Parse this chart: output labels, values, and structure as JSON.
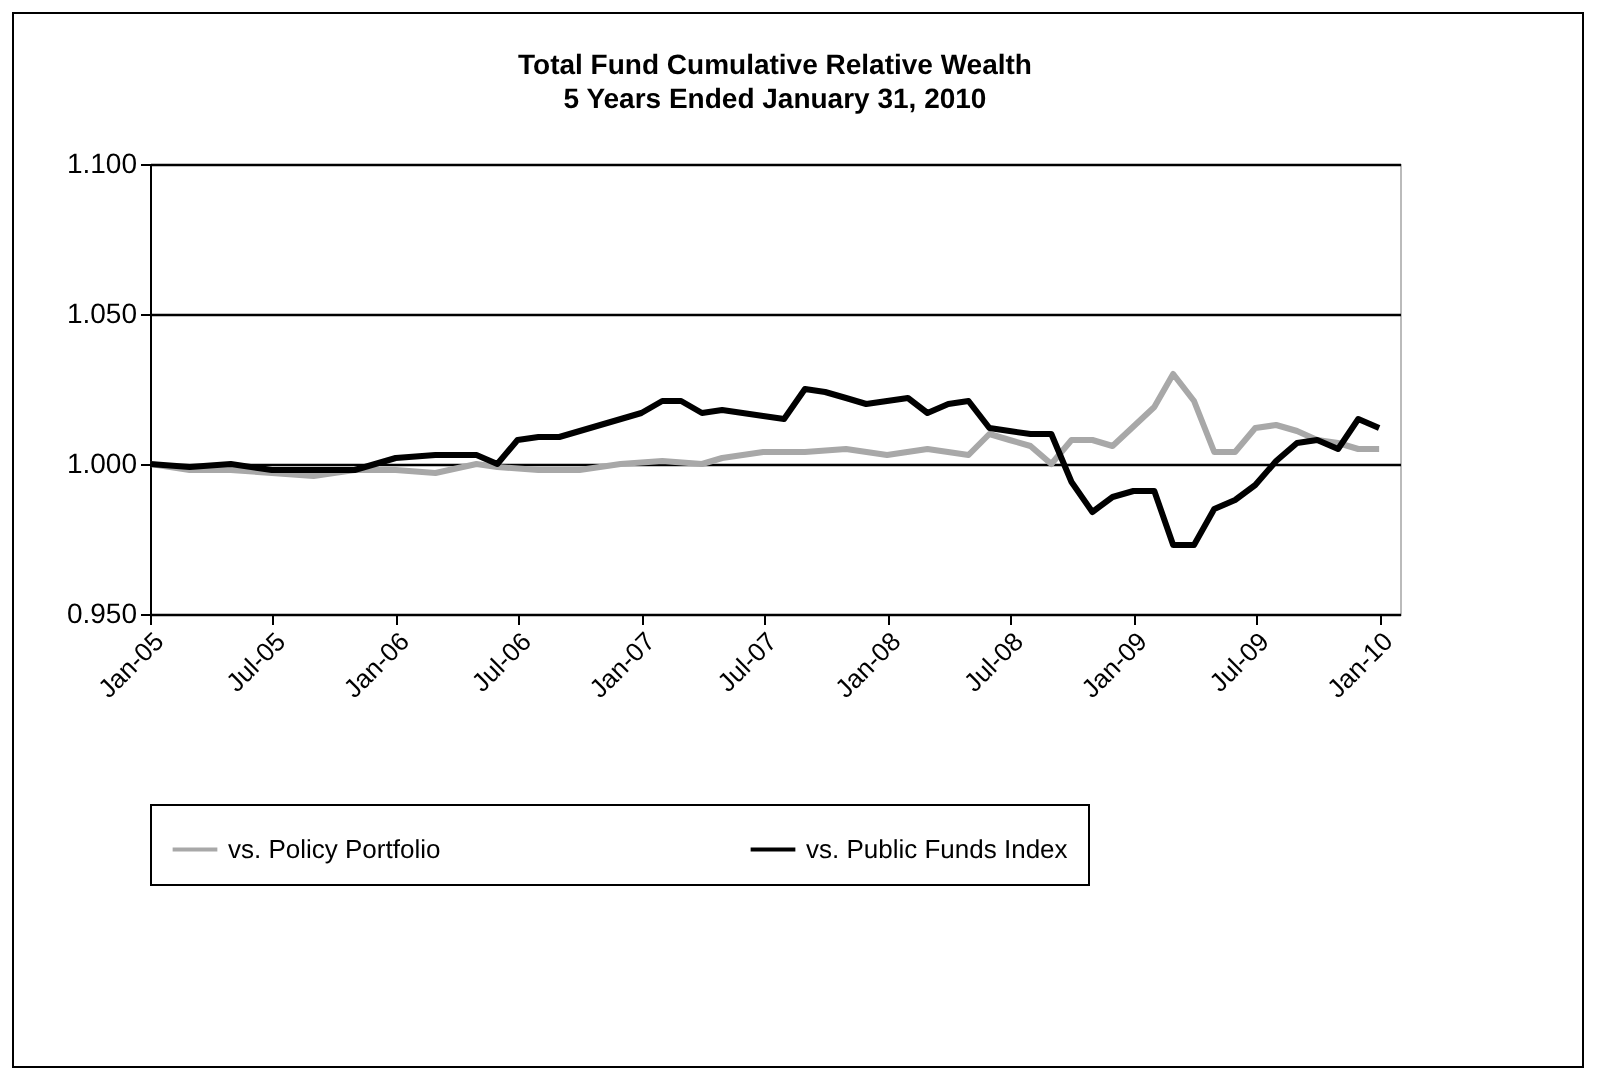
{
  "chart_data": {
    "type": "line",
    "title": "Total Fund Cumulative Relative Wealth",
    "subtitle": "5 Years Ended January 31, 2010",
    "series": [
      {
        "name": "vs. Policy Portfolio",
        "color": "#a8a8a8",
        "x": [
          "2005-01",
          "2005-03",
          "2005-05",
          "2005-07",
          "2005-09",
          "2005-11",
          "2006-01",
          "2006-03",
          "2006-05",
          "2006-06",
          "2006-08",
          "2006-10",
          "2006-12",
          "2007-02",
          "2007-04",
          "2007-05",
          "2007-07",
          "2007-09",
          "2007-11",
          "2008-01",
          "2008-03",
          "2008-05",
          "2008-06",
          "2008-07",
          "2008-08",
          "2008-09",
          "2008-10",
          "2008-11",
          "2008-12",
          "2009-02",
          "2009-03",
          "2009-04",
          "2009-05",
          "2009-06",
          "2009-07",
          "2009-08",
          "2009-09",
          "2009-10",
          "2009-11",
          "2009-12",
          "2010-01"
        ],
        "values": [
          1.0,
          0.998,
          0.998,
          0.997,
          0.996,
          0.998,
          0.998,
          0.997,
          1.0,
          0.999,
          0.998,
          0.998,
          1.0,
          1.001,
          1.0,
          1.002,
          1.004,
          1.004,
          1.005,
          1.003,
          1.005,
          1.003,
          1.01,
          1.008,
          1.006,
          1.0,
          1.008,
          1.008,
          1.006,
          1.019,
          1.03,
          1.021,
          1.004,
          1.004,
          1.012,
          1.013,
          1.011,
          1.008,
          1.007,
          1.005,
          1.005
        ]
      },
      {
        "name": "vs. Public Funds Index",
        "color": "#000000",
        "x": [
          "2005-01",
          "2005-03",
          "2005-05",
          "2005-07",
          "2005-09",
          "2005-11",
          "2006-01",
          "2006-03",
          "2006-05",
          "2006-06",
          "2006-07",
          "2006-08",
          "2006-09",
          "2006-11",
          "2007-01",
          "2007-02",
          "2007-03",
          "2007-04",
          "2007-05",
          "2007-07",
          "2007-08",
          "2007-09",
          "2007-10",
          "2007-11",
          "2007-12",
          "2008-01",
          "2008-02",
          "2008-03",
          "2008-04",
          "2008-05",
          "2008-06",
          "2008-07",
          "2008-08",
          "2008-09",
          "2008-10",
          "2008-11",
          "2008-12",
          "2009-01",
          "2009-02",
          "2009-03",
          "2009-04",
          "2009-05",
          "2009-06",
          "2009-07",
          "2009-08",
          "2009-09",
          "2009-10",
          "2009-11",
          "2009-12",
          "2010-01"
        ],
        "values": [
          1.0,
          0.999,
          1.0,
          0.998,
          0.998,
          0.998,
          1.002,
          1.003,
          1.003,
          1.0,
          1.008,
          1.009,
          1.009,
          1.013,
          1.017,
          1.021,
          1.021,
          1.017,
          1.018,
          1.016,
          1.015,
          1.025,
          1.024,
          1.022,
          1.02,
          1.021,
          1.022,
          1.017,
          1.02,
          1.021,
          1.012,
          1.011,
          1.01,
          1.01,
          0.994,
          0.984,
          0.989,
          0.991,
          0.991,
          0.973,
          0.973,
          0.985,
          0.988,
          0.993,
          1.001,
          1.007,
          1.008,
          1.005,
          1.015,
          1.012
        ]
      }
    ],
    "xlim": [
      "2005-01",
      "2010-02"
    ],
    "xticks": [
      {
        "value": "2005-01",
        "label": "Jan-05"
      },
      {
        "value": "2005-07",
        "label": "Jul-05"
      },
      {
        "value": "2006-01",
        "label": "Jan-06"
      },
      {
        "value": "2006-07",
        "label": "Jul-06"
      },
      {
        "value": "2007-01",
        "label": "Jan-07"
      },
      {
        "value": "2007-07",
        "label": "Jul-07"
      },
      {
        "value": "2008-01",
        "label": "Jan-08"
      },
      {
        "value": "2008-07",
        "label": "Jul-08"
      },
      {
        "value": "2009-01",
        "label": "Jan-09"
      },
      {
        "value": "2009-07",
        "label": "Jul-09"
      },
      {
        "value": "2010-01",
        "label": "Jan-10"
      }
    ],
    "ylim": [
      0.95,
      1.1
    ],
    "yticks": [
      {
        "value": 0.95,
        "label": "0.950"
      },
      {
        "value": 1.0,
        "label": "1.000"
      },
      {
        "value": 1.05,
        "label": "1.050"
      },
      {
        "value": 1.1,
        "label": "1.100"
      }
    ],
    "grid": "y",
    "legend": "bottom",
    "marker": "none",
    "line_style": "solid"
  }
}
